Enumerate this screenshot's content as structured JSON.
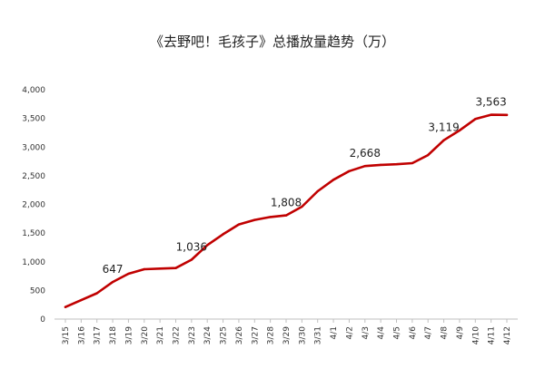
{
  "chart_data": {
    "type": "line",
    "title": "《去野吧！毛孩子》总播放量趋势（万）",
    "xlabel": "",
    "ylabel": "",
    "ylim": [
      0,
      4000
    ],
    "yticks": [
      "0",
      "500",
      "1,000",
      "1,500",
      "2,000",
      "2,500",
      "3,000",
      "3,500",
      "4,000"
    ],
    "ytick_values": [
      0,
      500,
      1000,
      1500,
      2000,
      2500,
      3000,
      3500,
      4000
    ],
    "grid": false,
    "legend": "none",
    "line_color": "#c00000",
    "x": [
      "3/15",
      "3/16",
      "3/17",
      "3/18",
      "3/19",
      "3/20",
      "3/21",
      "3/22",
      "3/23",
      "3/24",
      "3/25",
      "3/26",
      "3/27",
      "3/28",
      "3/29",
      "3/30",
      "3/31",
      "4/1",
      "4/2",
      "4/3",
      "4/4",
      "4/5",
      "4/6",
      "4/7",
      "4/8",
      "4/9",
      "4/10",
      "4/11",
      "4/12"
    ],
    "values": [
      210,
      330,
      450,
      647,
      790,
      870,
      880,
      890,
      1036,
      1290,
      1480,
      1650,
      1730,
      1780,
      1808,
      1960,
      2230,
      2430,
      2580,
      2668,
      2690,
      2700,
      2720,
      2860,
      3119,
      3290,
      3490,
      3563,
      3560
    ],
    "data_labels": [
      {
        "index": 3,
        "text": "647"
      },
      {
        "index": 8,
        "text": "1,036"
      },
      {
        "index": 14,
        "text": "1,808"
      },
      {
        "index": 19,
        "text": "2,668"
      },
      {
        "index": 24,
        "text": "3,119"
      },
      {
        "index": 27,
        "text": "3,563"
      }
    ]
  }
}
